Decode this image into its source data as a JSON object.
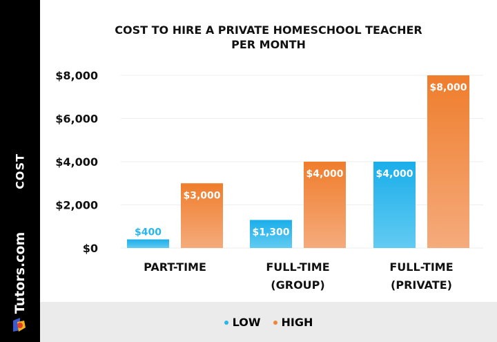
{
  "sidebar": {
    "axis_label": "COST",
    "brand": "Tutors.com"
  },
  "chart_data": {
    "type": "bar",
    "title": "COST TO HIRE A PRIVATE HOMESCHOOL TEACHER PER MONTH",
    "title_lines": [
      "COST TO HIRE A PRIVATE HOMESCHOOL TEACHER",
      "PER MONTH"
    ],
    "ylabel": "COST",
    "categories": [
      [
        "PART-TIME"
      ],
      [
        "FULL-TIME",
        "(GROUP)"
      ],
      [
        "FULL-TIME",
        "(PRIVATE)"
      ]
    ],
    "series": [
      {
        "name": "LOW",
        "values": [
          400,
          1300,
          4000
        ],
        "labels": [
          "$400",
          "$1,300",
          "$4,000"
        ],
        "color": "#29b6ea"
      },
      {
        "name": "HIGH",
        "values": [
          3000,
          4000,
          8000
        ],
        "labels": [
          "$3,000",
          "$4,000",
          "$8,000"
        ],
        "color": "#f0843a"
      }
    ],
    "ylim": [
      0,
      8000
    ],
    "yticks": [
      0,
      2000,
      4000,
      6000,
      8000
    ],
    "ytick_labels": [
      "$0",
      "$2,000",
      "$4,000",
      "$6,000",
      "$8,000"
    ],
    "grid": true,
    "legend": "bottom"
  }
}
